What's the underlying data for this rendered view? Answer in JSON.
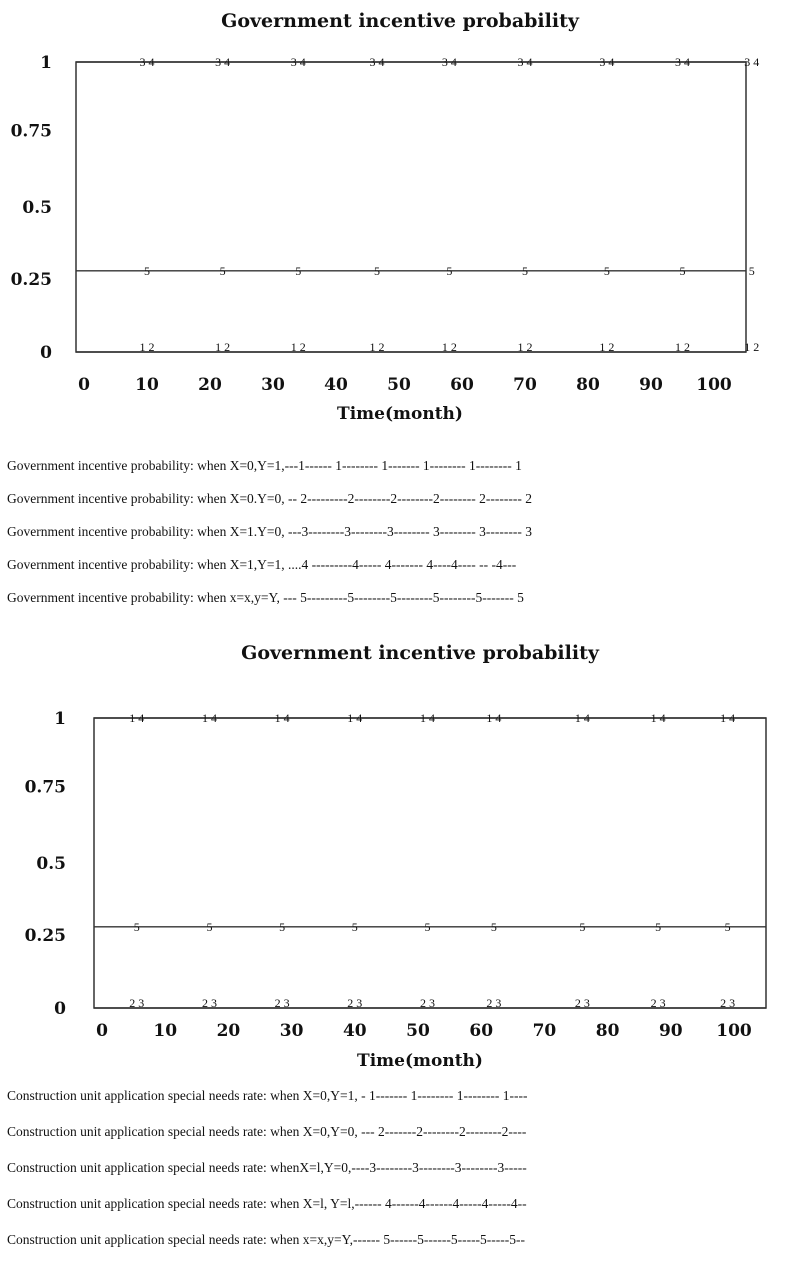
{
  "chart_data": [
    {
      "type": "line",
      "title": "Government incentive probability",
      "xlabel": "Time(month)",
      "ylabel": "",
      "x_ticks": [
        "0",
        "10",
        "20",
        "30",
        "40",
        "50",
        "60",
        "70",
        "80",
        "90",
        "100"
      ],
      "y_ticks": [
        "1",
        "0.75",
        "0.5",
        "0.25",
        "0"
      ],
      "xlim": [
        0,
        100
      ],
      "ylim": [
        0,
        1
      ],
      "grid": false,
      "series": [
        {
          "name": "1",
          "x": [
            0,
            100
          ],
          "y": [
            0,
            0
          ]
        },
        {
          "name": "2",
          "x": [
            0,
            100
          ],
          "y": [
            0,
            0
          ]
        },
        {
          "name": "3",
          "x": [
            0,
            100
          ],
          "y": [
            1,
            1
          ]
        },
        {
          "name": "4",
          "x": [
            0,
            100
          ],
          "y": [
            1,
            1
          ]
        },
        {
          "name": "5",
          "x": [
            0,
            100
          ],
          "y": [
            0.28,
            0.28
          ]
        }
      ],
      "legend": [
        "Government incentive probability:  when X=0,Y=1,---1------ 1-------- 1------- 1-------- 1-------- 1",
        "Government incentive probability:  when X=0.Y=0, -- 2---------2--------2--------2-------- 2-------- 2",
        "Government incentive probability:  when X=1.Y=0, ---3--------3--------3-------- 3-------- 3-------- 3",
        "Government incentive probability:  when X=1,Y=1, ....4 ---------4----- 4------- 4----4---- -- -4---",
        "Government incentive probability:  when x=x,y=Y, --- 5---------5--------5--------5--------5------- 5"
      ]
    },
    {
      "type": "line",
      "title": "Government incentive probability",
      "xlabel": "Time(month)",
      "ylabel": "",
      "x_ticks": [
        "0",
        "10",
        "20",
        "30",
        "40",
        "50",
        "60",
        "70",
        "80",
        "90",
        "100"
      ],
      "y_ticks": [
        "1",
        "0.75",
        "0.5",
        "0.25",
        "0"
      ],
      "xlim": [
        0,
        100
      ],
      "ylim": [
        0,
        1
      ],
      "grid": false,
      "series": [
        {
          "name": "1",
          "x": [
            0,
            100
          ],
          "y": [
            1,
            1
          ]
        },
        {
          "name": "2",
          "x": [
            0,
            100
          ],
          "y": [
            0,
            0
          ]
        },
        {
          "name": "3",
          "x": [
            0,
            100
          ],
          "y": [
            0,
            0
          ]
        },
        {
          "name": "4",
          "x": [
            0,
            100
          ],
          "y": [
            1,
            1
          ]
        },
        {
          "name": "5",
          "x": [
            0,
            100
          ],
          "y": [
            0.28,
            0.28
          ]
        }
      ],
      "legend": [
        "Construction unit application special needs rate: when X=0,Y=1, - 1------- 1-------- 1-------- 1----",
        "Construction unit application special needs rate: when X=0,Y=0, --- 2-------2--------2--------2----",
        "Construction unit application special needs rate: whenX=l,Y=0,----3--------3--------3--------3-----",
        "Construction unit application special needs rate: when X=l, Y=l,------ 4------4------4-----4-----4--",
        "Construction unit application special needs rate: when x=x,y=Y,------ 5------5------5-----5-----5--"
      ]
    }
  ]
}
